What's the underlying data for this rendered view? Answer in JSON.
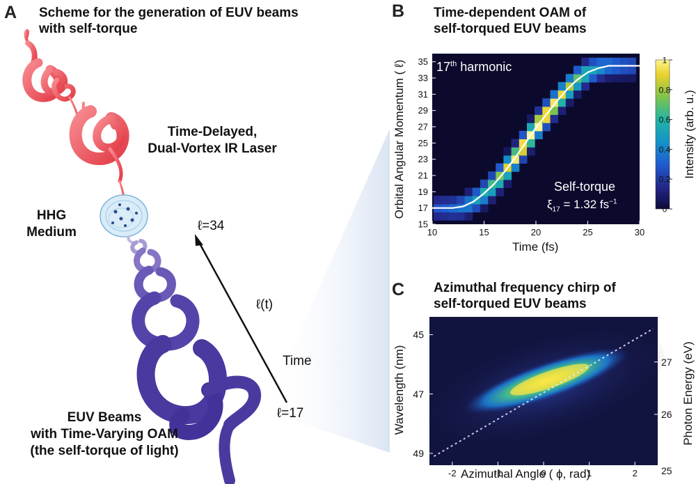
{
  "panel_a": {
    "letter": "A",
    "title_line1": "Scheme for the generation of EUV beams",
    "title_line2": "with self-torque",
    "laser_label_line1": "Time-Delayed,",
    "laser_label_line2": "Dual-Vortex IR Laser",
    "medium_label_line1": "HHG",
    "medium_label_line2": "Medium",
    "l_top": "ℓ=34",
    "l_mid": "ℓ(t)",
    "time": "Time",
    "l_bottom": "ℓ=17",
    "euv_line1": "EUV Beams",
    "euv_line2": "with Time-Varying OAM",
    "euv_line3": "(the self-torque of light)",
    "colors": {
      "ir": "#ee5a62",
      "euv": "#4a3aa0"
    }
  },
  "panel_b": {
    "letter": "B",
    "title_line1": "Time-dependent OAM of",
    "title_line2": "self-torqued EUV beams",
    "harmonic_num": "17",
    "harmonic_sup": "th",
    "harmonic_word": " harmonic",
    "selftorque_label": "Self-torque",
    "xi_symbol": "ξ",
    "xi_sub": "17",
    "xi_value": " = 1.32 fs",
    "xi_exp": "−1",
    "xlabel": "Time (fs)",
    "ylabel": "Orbital Angular Momentum ( ℓ)",
    "colorbar_label": "Intensity (arb. u.)",
    "xticks": [
      "10",
      "15",
      "20",
      "25",
      "30"
    ],
    "yticks": [
      "15",
      "17",
      "19",
      "21",
      "23",
      "25",
      "27",
      "29",
      "31",
      "33",
      "35"
    ],
    "cbticks": [
      "0",
      "0.2",
      "0.4",
      "0.6",
      "0.8",
      "1"
    ]
  },
  "panel_c": {
    "letter": "C",
    "title_line1": "Azimuthal frequency chirp of",
    "title_line2": "self-torqued EUV beams",
    "xlabel": "Azimuthal Angle ( ϕ, rad)",
    "ylabel_left": "Wavelength (nm)",
    "ylabel_right": "Photon Energy (eV)",
    "xticks": [
      "-2",
      "-1",
      "0",
      "1",
      "2"
    ],
    "yticks_left": [
      "45",
      "47",
      "49"
    ],
    "yticks_right": [
      "27",
      "26",
      "25"
    ]
  },
  "chart_data": [
    {
      "type": "heatmap",
      "xlabel": "Time (fs)",
      "ylabel": "Orbital Angular Momentum ( ℓ)",
      "xlim": [
        10,
        30
      ],
      "ylim": [
        15,
        36
      ],
      "colorbar_range": [
        0,
        1
      ],
      "colorbar_label": "Intensity (arb. u.)",
      "annotation": "Self-torque ξ17 = 1.32 fs−1",
      "fit_curve": {
        "x": [
          10,
          12,
          13,
          14,
          15,
          16,
          17,
          18,
          19,
          20,
          21,
          22,
          23,
          24,
          25,
          26,
          27,
          28,
          30
        ],
        "y": [
          17,
          17,
          17.2,
          17.8,
          18.8,
          20.0,
          21.5,
          23.2,
          25.0,
          26.9,
          28.5,
          30.1,
          31.6,
          32.8,
          33.7,
          34.2,
          34.5,
          34.5,
          34.5
        ]
      }
    },
    {
      "type": "heatmap",
      "xlabel": "Azimuthal Angle ( ϕ, rad)",
      "ylabel": "Wavelength (nm)",
      "y2label": "Photon Energy (eV)",
      "xlim": [
        -2.5,
        2.5
      ],
      "ylim_wavelength": [
        49.4,
        44.4
      ],
      "ridge": {
        "x": [
          -2.4,
          0,
          2.4
        ],
        "wavelength": [
          49.1,
          46.9,
          44.8
        ]
      }
    }
  ]
}
